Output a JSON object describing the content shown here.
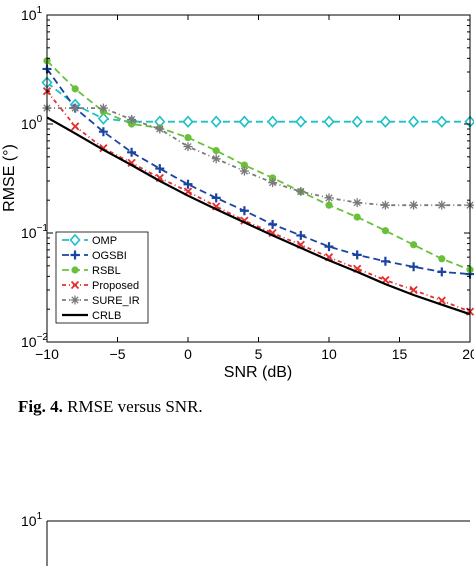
{
  "caption": {
    "label": "Fig. 4.",
    "text": "RMSE versus SNR."
  },
  "chart_data": [
    {
      "type": "line",
      "title": "",
      "xlabel": "SNR (dB)",
      "ylabel": "RMSE (°)",
      "xlim": [
        -10,
        20
      ],
      "ylim": [
        0.01,
        10
      ],
      "yscale": "log",
      "grid": false,
      "legend_position": "bottom-left",
      "xticks": [
        "−10",
        "−5",
        "0",
        "5",
        "10",
        "15",
        "20"
      ],
      "yticks_base": "10",
      "yticks_exp": [
        "1",
        "0",
        "−1",
        "−2"
      ],
      "series": [
        {
          "name": "OMP",
          "color": "#1ec0c8",
          "dash": "7 4",
          "marker": "diamond-open",
          "x": [
            -10,
            -8,
            -6,
            -4,
            -2,
            0,
            2,
            4,
            6,
            8,
            10,
            12,
            14,
            16,
            18,
            20
          ],
          "y": [
            2.4,
            1.5,
            1.12,
            1.05,
            1.05,
            1.05,
            1.05,
            1.05,
            1.05,
            1.05,
            1.05,
            1.05,
            1.05,
            1.05,
            1.05,
            1.05
          ]
        },
        {
          "name": "OGSBI",
          "color": "#1a44a0",
          "dash": "7 4",
          "marker": "plus",
          "x": [
            -10,
            -8,
            -6,
            -4,
            -2,
            0,
            2,
            4,
            6,
            8,
            10,
            12,
            14,
            16,
            18,
            20
          ],
          "y": [
            3.2,
            1.4,
            0.85,
            0.55,
            0.39,
            0.28,
            0.21,
            0.16,
            0.12,
            0.095,
            0.075,
            0.063,
            0.055,
            0.049,
            0.044,
            0.042
          ]
        },
        {
          "name": "RSBL",
          "color": "#6ac03a",
          "dash": "7 4",
          "marker": "dot",
          "x": [
            -10,
            -8,
            -6,
            -4,
            -2,
            0,
            2,
            4,
            6,
            8,
            10,
            12,
            14,
            16,
            18,
            20
          ],
          "y": [
            3.8,
            2.1,
            1.3,
            1.0,
            0.92,
            0.75,
            0.57,
            0.42,
            0.32,
            0.24,
            0.18,
            0.14,
            0.105,
            0.078,
            0.058,
            0.046
          ]
        },
        {
          "name": "Proposed",
          "color": "#e53030",
          "dash": "4 3 1 3",
          "marker": "x",
          "x": [
            -10,
            -8,
            -6,
            -4,
            -2,
            0,
            2,
            4,
            6,
            8,
            10,
            12,
            14,
            16,
            18,
            20
          ],
          "y": [
            2.0,
            0.95,
            0.6,
            0.44,
            0.32,
            0.24,
            0.175,
            0.13,
            0.1,
            0.078,
            0.06,
            0.047,
            0.037,
            0.03,
            0.024,
            0.019
          ]
        },
        {
          "name": "SURE_IR",
          "color": "#7a7a7a",
          "dash": "4 3 1 3",
          "marker": "star",
          "x": [
            -10,
            -8,
            -6,
            -4,
            -2,
            0,
            2,
            4,
            6,
            8,
            10,
            12,
            14,
            16,
            18,
            20
          ],
          "y": [
            1.4,
            1.4,
            1.4,
            1.1,
            0.9,
            0.62,
            0.48,
            0.37,
            0.29,
            0.24,
            0.21,
            0.19,
            0.18,
            0.18,
            0.18,
            0.18
          ]
        },
        {
          "name": "CRLB",
          "color": "#000000",
          "dash": "",
          "marker": "none",
          "x": [
            -10,
            -8,
            -6,
            -4,
            -2,
            0,
            2,
            4,
            6,
            8,
            10,
            12,
            14,
            16,
            18,
            20
          ],
          "y": [
            1.15,
            0.82,
            0.58,
            0.42,
            0.3,
            0.22,
            0.165,
            0.125,
            0.095,
            0.073,
            0.056,
            0.044,
            0.034,
            0.027,
            0.022,
            0.018
          ]
        }
      ]
    },
    {
      "type": "line",
      "title": "",
      "xlabel": "",
      "ylabel": "",
      "ylim": [
        0.01,
        10
      ],
      "yscale": "log",
      "yticks_base": "10",
      "yticks_exp": [
        "1"
      ]
    }
  ]
}
